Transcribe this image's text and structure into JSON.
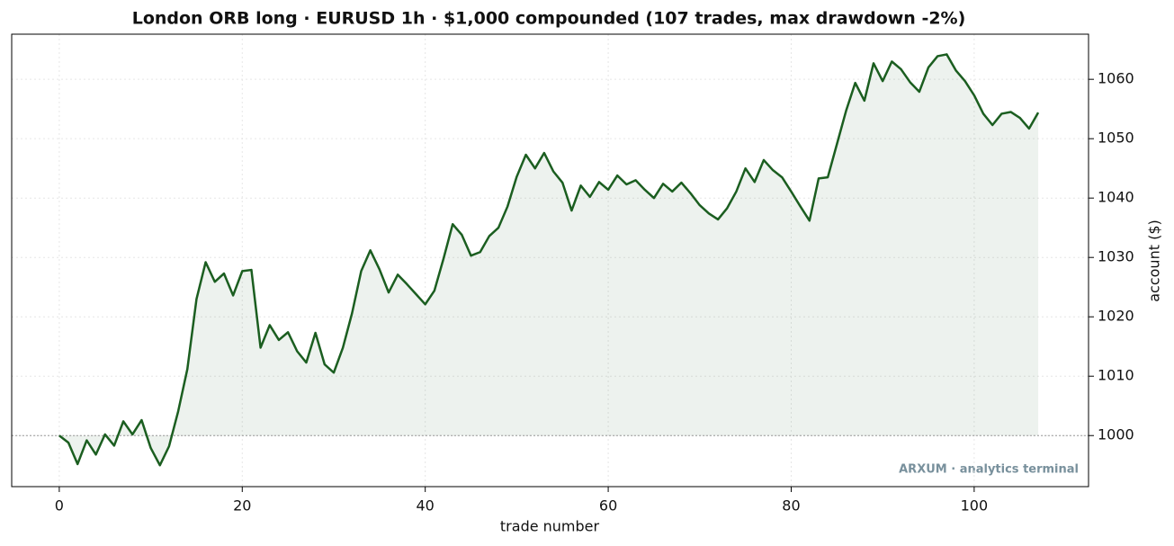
{
  "chart_data": {
    "type": "line",
    "title": "London ORB long · EURUSD 1h · $1,000 compounded (107 trades, max drawdown -2%)",
    "x_label": "trade number",
    "y_label": "account ($)",
    "annotation": "ARXUM · analytics terminal",
    "x": [
      0,
      1,
      2,
      3,
      4,
      5,
      6,
      7,
      8,
      9,
      10,
      11,
      12,
      13,
      14,
      15,
      16,
      17,
      18,
      19,
      20,
      21,
      22,
      23,
      24,
      25,
      26,
      27,
      28,
      29,
      30,
      31,
      32,
      33,
      34,
      35,
      36,
      37,
      38,
      39,
      40,
      41,
      42,
      43,
      44,
      45,
      46,
      47,
      48,
      49,
      50,
      51,
      52,
      53,
      54,
      55,
      56,
      57,
      58,
      59,
      60,
      61,
      62,
      63,
      64,
      65,
      66,
      67,
      68,
      69,
      70,
      71,
      72,
      73,
      74,
      75,
      76,
      77,
      78,
      79,
      80,
      81,
      82,
      83,
      84,
      85,
      86,
      87,
      88,
      89,
      90,
      91,
      92,
      93,
      94,
      95,
      96,
      97,
      98,
      99,
      100,
      101,
      102,
      103,
      104,
      105,
      106,
      107
    ],
    "series": [
      {
        "name": "account",
        "color": "#1b5e20",
        "values": [
          1000,
          998.8,
          995.2,
          999.2,
          996.8,
          1000.2,
          998.3,
          1002.4,
          1000.2,
          1002.6,
          997.9,
          995.0,
          998.2,
          1004.1,
          1011.2,
          1023.0,
          1029.2,
          1025.9,
          1027.3,
          1023.6,
          1027.7,
          1027.9,
          1014.8,
          1018.6,
          1016.1,
          1017.4,
          1014.2,
          1012.3,
          1017.3,
          1012.0,
          1010.6,
          1014.8,
          1020.6,
          1027.7,
          1031.2,
          1028.0,
          1024.1,
          1027.1,
          1025.5,
          1023.8,
          1022.1,
          1024.4,
          1029.8,
          1035.6,
          1033.8,
          1030.3,
          1030.9,
          1033.6,
          1035.0,
          1038.6,
          1043.6,
          1047.3,
          1045.0,
          1047.6,
          1044.5,
          1042.6,
          1037.9,
          1042.1,
          1040.2,
          1042.7,
          1041.4,
          1043.8,
          1042.3,
          1043.0,
          1041.4,
          1040.0,
          1042.4,
          1041.1,
          1042.6,
          1040.8,
          1038.8,
          1037.4,
          1036.4,
          1038.3,
          1041.1,
          1045.0,
          1042.7,
          1046.4,
          1044.7,
          1043.5,
          1041.1,
          1038.6,
          1036.2,
          1043.3,
          1043.5,
          1049.1,
          1054.7,
          1059.4,
          1056.4,
          1062.7,
          1059.7,
          1063.0,
          1061.7,
          1059.5,
          1057.9,
          1062.0,
          1063.9,
          1064.2,
          1061.5,
          1059.7,
          1057.3,
          1054.2,
          1052.3,
          1054.2,
          1054.5,
          1053.5,
          1051.7,
          1054.4
        ]
      }
    ],
    "baseline": 1000,
    "xlim": [
      -5.2,
      112.5
    ],
    "ylim": [
      991.4,
      1067.6
    ],
    "xticks": [
      0,
      20,
      40,
      60,
      80,
      100
    ],
    "yticks": [
      1000,
      1010,
      1020,
      1030,
      1040,
      1050,
      1060
    ],
    "y_axis_side": "right",
    "grid": true,
    "fill_area": true
  }
}
